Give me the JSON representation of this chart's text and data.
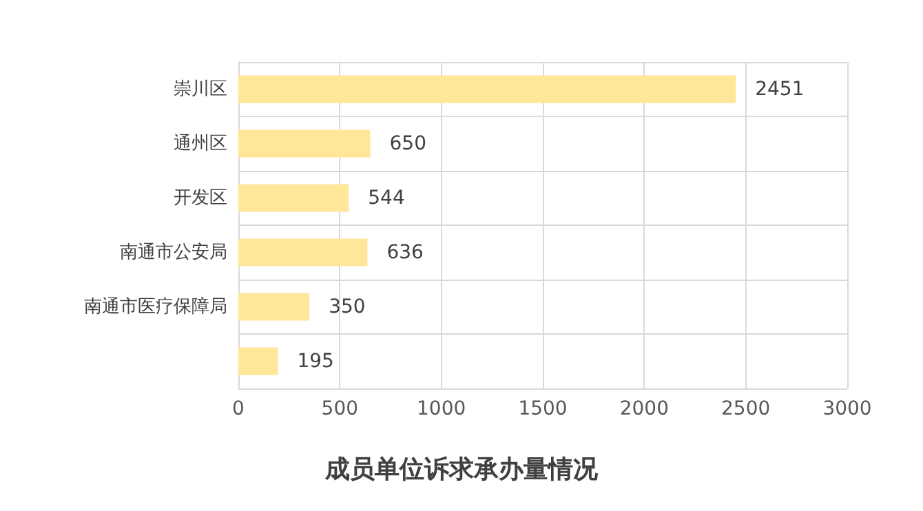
{
  "chart_data": {
    "type": "bar",
    "orientation": "horizontal",
    "title": "成员单位诉求承办量情况",
    "categories": [
      "崇川区",
      "通州区",
      "开发区",
      "南通市公安局",
      "南通市医疗保障局",
      null
    ],
    "values": [
      2451,
      650,
      544,
      636,
      350,
      195
    ],
    "color": "#ffe699",
    "xlim": [
      0,
      3000
    ],
    "xticks": [
      0,
      500,
      1000,
      1500,
      2000,
      2500,
      3000
    ],
    "grid": true,
    "data_labels": true
  }
}
